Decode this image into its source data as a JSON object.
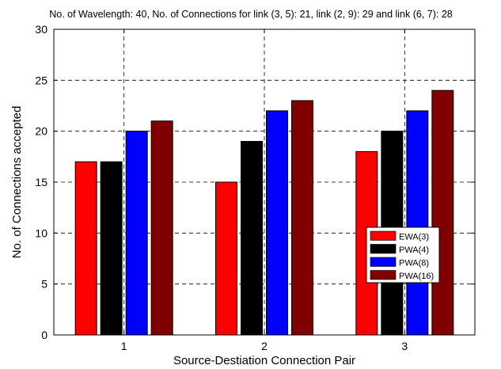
{
  "chart_data": {
    "type": "bar",
    "title": "No. of Wavelength: 40, No. of Connections for link  (3, 5): 21, link (2, 9): 29 and link  (6, 7): 28",
    "xlabel": "Source-Destiation Connection Pair",
    "ylabel": "No. of Connections accepted",
    "categories": [
      "1",
      "2",
      "3"
    ],
    "ylim": [
      0,
      30
    ],
    "yticks": [
      0,
      5,
      10,
      15,
      20,
      25,
      30
    ],
    "grid": true,
    "legend_position": "right-middle",
    "series": [
      {
        "name": "EWA(3)",
        "color": "#ff0000",
        "values": [
          17,
          15,
          18
        ]
      },
      {
        "name": "PWA(4)",
        "color": "#000000",
        "values": [
          17,
          19,
          20
        ]
      },
      {
        "name": "PWA(8)",
        "color": "#0000ff",
        "values": [
          20,
          22,
          22
        ]
      },
      {
        "name": "PWA(16)",
        "color": "#800000",
        "values": [
          21,
          23,
          24
        ]
      }
    ]
  }
}
